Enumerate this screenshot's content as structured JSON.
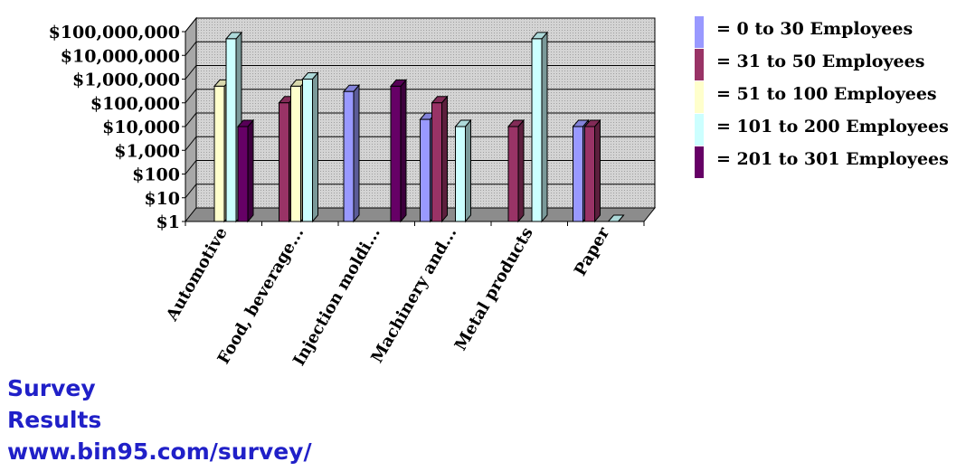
{
  "chart_data": {
    "type": "bar",
    "categories": [
      "Automotive",
      "Food, beverage...",
      "Injection moldi...",
      "Machinery and...",
      "Metal products",
      "Paper"
    ],
    "yscale": "log",
    "ylim": [
      1,
      100000000
    ],
    "yticks": [
      "$1",
      "$10",
      "$100",
      "$1,000",
      "$10,000",
      "$100,000",
      "$1,000,000",
      "$10,000,000",
      "$100,000,000"
    ],
    "grid": true,
    "legend_position": "right",
    "series": [
      {
        "name": "0 to 30 Employees",
        "color": "#9999ff",
        "values": [
          null,
          null,
          300000,
          20000,
          null,
          10000
        ]
      },
      {
        "name": "31 to 50 Employees",
        "color": "#993366",
        "values": [
          null,
          100000,
          null,
          100000,
          10000,
          10000
        ]
      },
      {
        "name": "51 to 100 Employees",
        "color": "#ffffcc",
        "values": [
          500000,
          500000,
          null,
          null,
          null,
          null
        ]
      },
      {
        "name": "101 to 200 Employees",
        "color": "#ccffff",
        "values": [
          50000000,
          1000000,
          null,
          10000,
          50000000,
          1
        ]
      },
      {
        "name": "201 to 301 Employees",
        "color": "#660066",
        "values": [
          10000,
          null,
          500000,
          null,
          null,
          null
        ]
      }
    ]
  },
  "legend_prefix": "=",
  "watermark": {
    "line1": "Survey",
    "line2": "Results",
    "line3": "www.bin95.com/survey/"
  }
}
